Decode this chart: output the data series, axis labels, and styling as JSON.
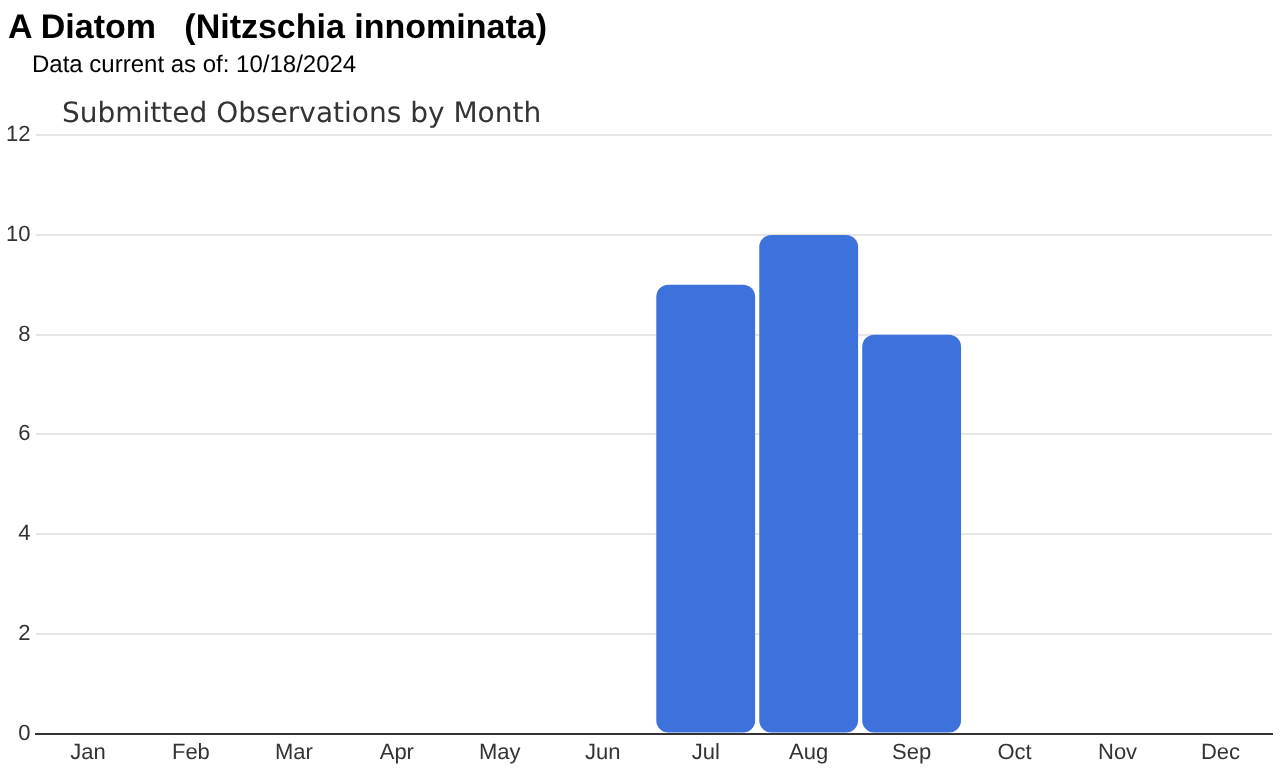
{
  "chart_data": {
    "type": "bar",
    "title": "A Diatom   (Nitzschia innominata)",
    "subtitle": "Data current as of: 10/18/2024",
    "annotations": [
      "Submitted Observations by Month"
    ],
    "categories": [
      "Jan",
      "Feb",
      "Mar",
      "Apr",
      "May",
      "Jun",
      "Jul",
      "Aug",
      "Sep",
      "Oct",
      "Nov",
      "Dec"
    ],
    "values": [
      0,
      0,
      0,
      0,
      0,
      0,
      9,
      10,
      8,
      0,
      0,
      0
    ],
    "color": "#3d72dc",
    "ylim": [
      0,
      12
    ],
    "yticks": [
      0,
      2,
      4,
      6,
      8,
      10,
      12
    ],
    "grid": "y",
    "legend": false
  }
}
